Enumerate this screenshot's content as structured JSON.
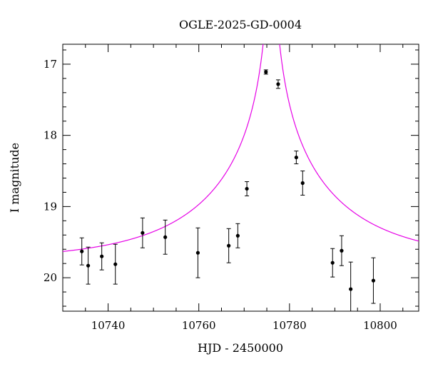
{
  "chart_data": {
    "type": "scatter",
    "title": "OGLE-2025-GD-0004",
    "xlabel": "HJD - 2450000",
    "ylabel": "I magnitude",
    "xlim": [
      10730,
      10808.5
    ],
    "ylim": [
      20.47,
      16.72
    ],
    "y_inverted": true,
    "grid": false,
    "x_major_ticks": [
      10740,
      10760,
      10780,
      10800
    ],
    "x_minor_step": 5,
    "y_major_ticks": [
      17,
      18,
      19,
      20
    ],
    "y_minor_step": 0.2,
    "colors": {
      "points": "#000000",
      "model": "#e600e6"
    },
    "points": [
      {
        "x": 10734.2,
        "y": 19.63,
        "err": 0.19
      },
      {
        "x": 10735.6,
        "y": 19.83,
        "err": 0.26
      },
      {
        "x": 10738.6,
        "y": 19.7,
        "err": 0.19
      },
      {
        "x": 10741.6,
        "y": 19.81,
        "err": 0.28
      },
      {
        "x": 10747.6,
        "y": 19.37,
        "err": 0.21
      },
      {
        "x": 10752.6,
        "y": 19.43,
        "err": 0.24
      },
      {
        "x": 10759.8,
        "y": 19.65,
        "err": 0.35
      },
      {
        "x": 10766.6,
        "y": 19.55,
        "err": 0.24
      },
      {
        "x": 10768.6,
        "y": 19.41,
        "err": 0.17
      },
      {
        "x": 10770.6,
        "y": 18.75,
        "err": 0.1
      },
      {
        "x": 10774.8,
        "y": 17.11,
        "err": 0.03
      },
      {
        "x": 10777.5,
        "y": 17.28,
        "err": 0.06
      },
      {
        "x": 10781.5,
        "y": 18.31,
        "err": 0.09
      },
      {
        "x": 10782.9,
        "y": 18.67,
        "err": 0.17
      },
      {
        "x": 10789.5,
        "y": 19.79,
        "err": 0.2
      },
      {
        "x": 10791.5,
        "y": 19.62,
        "err": 0.21
      },
      {
        "x": 10793.5,
        "y": 20.16,
        "err": 0.38
      },
      {
        "x": 10798.5,
        "y": 20.04,
        "err": 0.32
      }
    ],
    "model": {
      "name": "",
      "type": "point-lens",
      "t0": 10776.0,
      "u0": 0.002,
      "tE": 30.0,
      "base_mag": 19.76
    }
  }
}
